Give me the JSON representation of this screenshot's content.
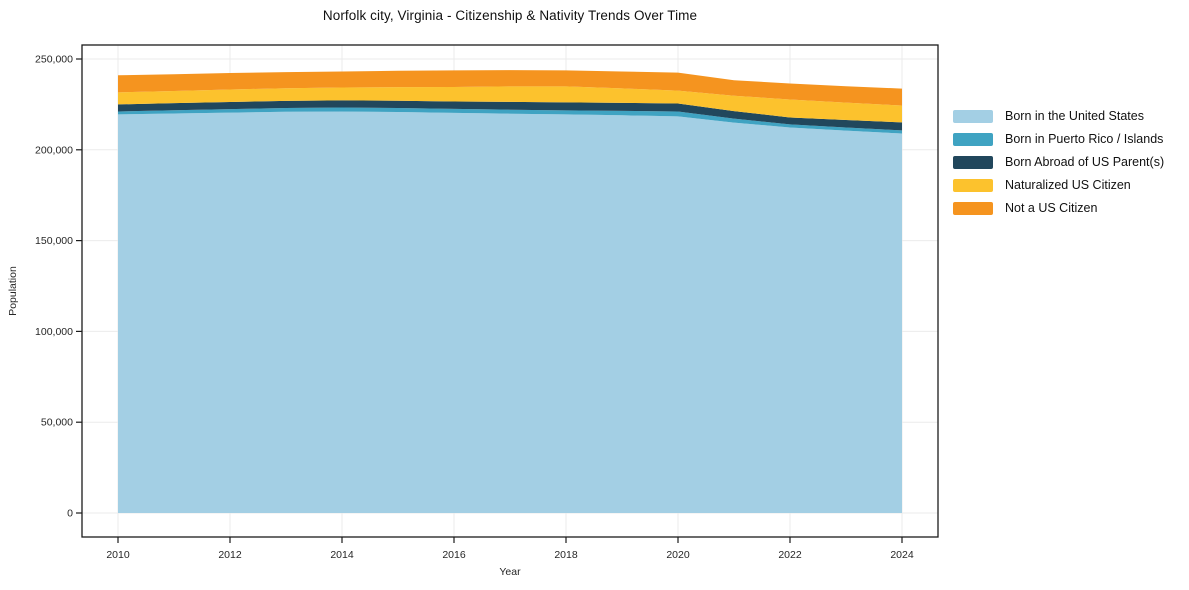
{
  "figure": {
    "title": "Norfolk city, Virginia - Citizenship & Nativity Trends Over Time"
  },
  "chart_data": {
    "type": "area",
    "stacked": true,
    "title": "Norfolk city, Virginia - Citizenship & Nativity Trends Over Time",
    "xlabel": "Year",
    "ylabel": "Population",
    "x": [
      2010,
      2011,
      2012,
      2013,
      2014,
      2015,
      2016,
      2017,
      2018,
      2019,
      2020,
      2021,
      2022,
      2023,
      2024
    ],
    "series": [
      {
        "name": "Born in the United States",
        "color": "#a3cfe4",
        "values": [
          219500,
          220000,
          220500,
          221000,
          221100,
          220800,
          220300,
          219900,
          219500,
          219000,
          218400,
          215000,
          212300,
          210600,
          209000
        ]
      },
      {
        "name": "Born in Puerto Rico / Islands",
        "color": "#3fa3c2",
        "values": [
          1600,
          1800,
          1900,
          2000,
          2200,
          2200,
          2200,
          2200,
          2200,
          2400,
          2700,
          2200,
          1700,
          1700,
          1700
        ]
      },
      {
        "name": "Born Abroad of US Parent(s)",
        "color": "#21475c",
        "values": [
          3900,
          3900,
          3900,
          3900,
          3900,
          4000,
          4100,
          4300,
          4400,
          4400,
          4400,
          4100,
          3800,
          4100,
          4400
        ]
      },
      {
        "name": "Naturalized US Citizen",
        "color": "#fcc22d",
        "values": [
          6600,
          6700,
          6900,
          7000,
          7100,
          7500,
          8000,
          8500,
          8800,
          8000,
          7100,
          8500,
          9900,
          9600,
          9300
        ]
      },
      {
        "name": "Not a US Citizen",
        "color": "#f5941f",
        "values": [
          9400,
          9200,
          9100,
          8900,
          8800,
          9000,
          9100,
          9000,
          8800,
          9300,
          9900,
          8500,
          8800,
          9000,
          9300
        ]
      }
    ],
    "ylim": [
      0,
      250000
    ],
    "yticks": [
      0,
      50000,
      100000,
      150000,
      200000,
      250000
    ],
    "ytick_labels": [
      "0",
      "50,000",
      "100,000",
      "150,000",
      "200,000",
      "250,000"
    ],
    "xticks": [
      2010,
      2012,
      2014,
      2016,
      2018,
      2020,
      2022,
      2024
    ],
    "grid": true,
    "legend_position": "right-outside"
  },
  "colors": {
    "grid": "#ebebeb",
    "spine": "#1b1b1b",
    "text": "#262626",
    "background": "#ffffff"
  }
}
